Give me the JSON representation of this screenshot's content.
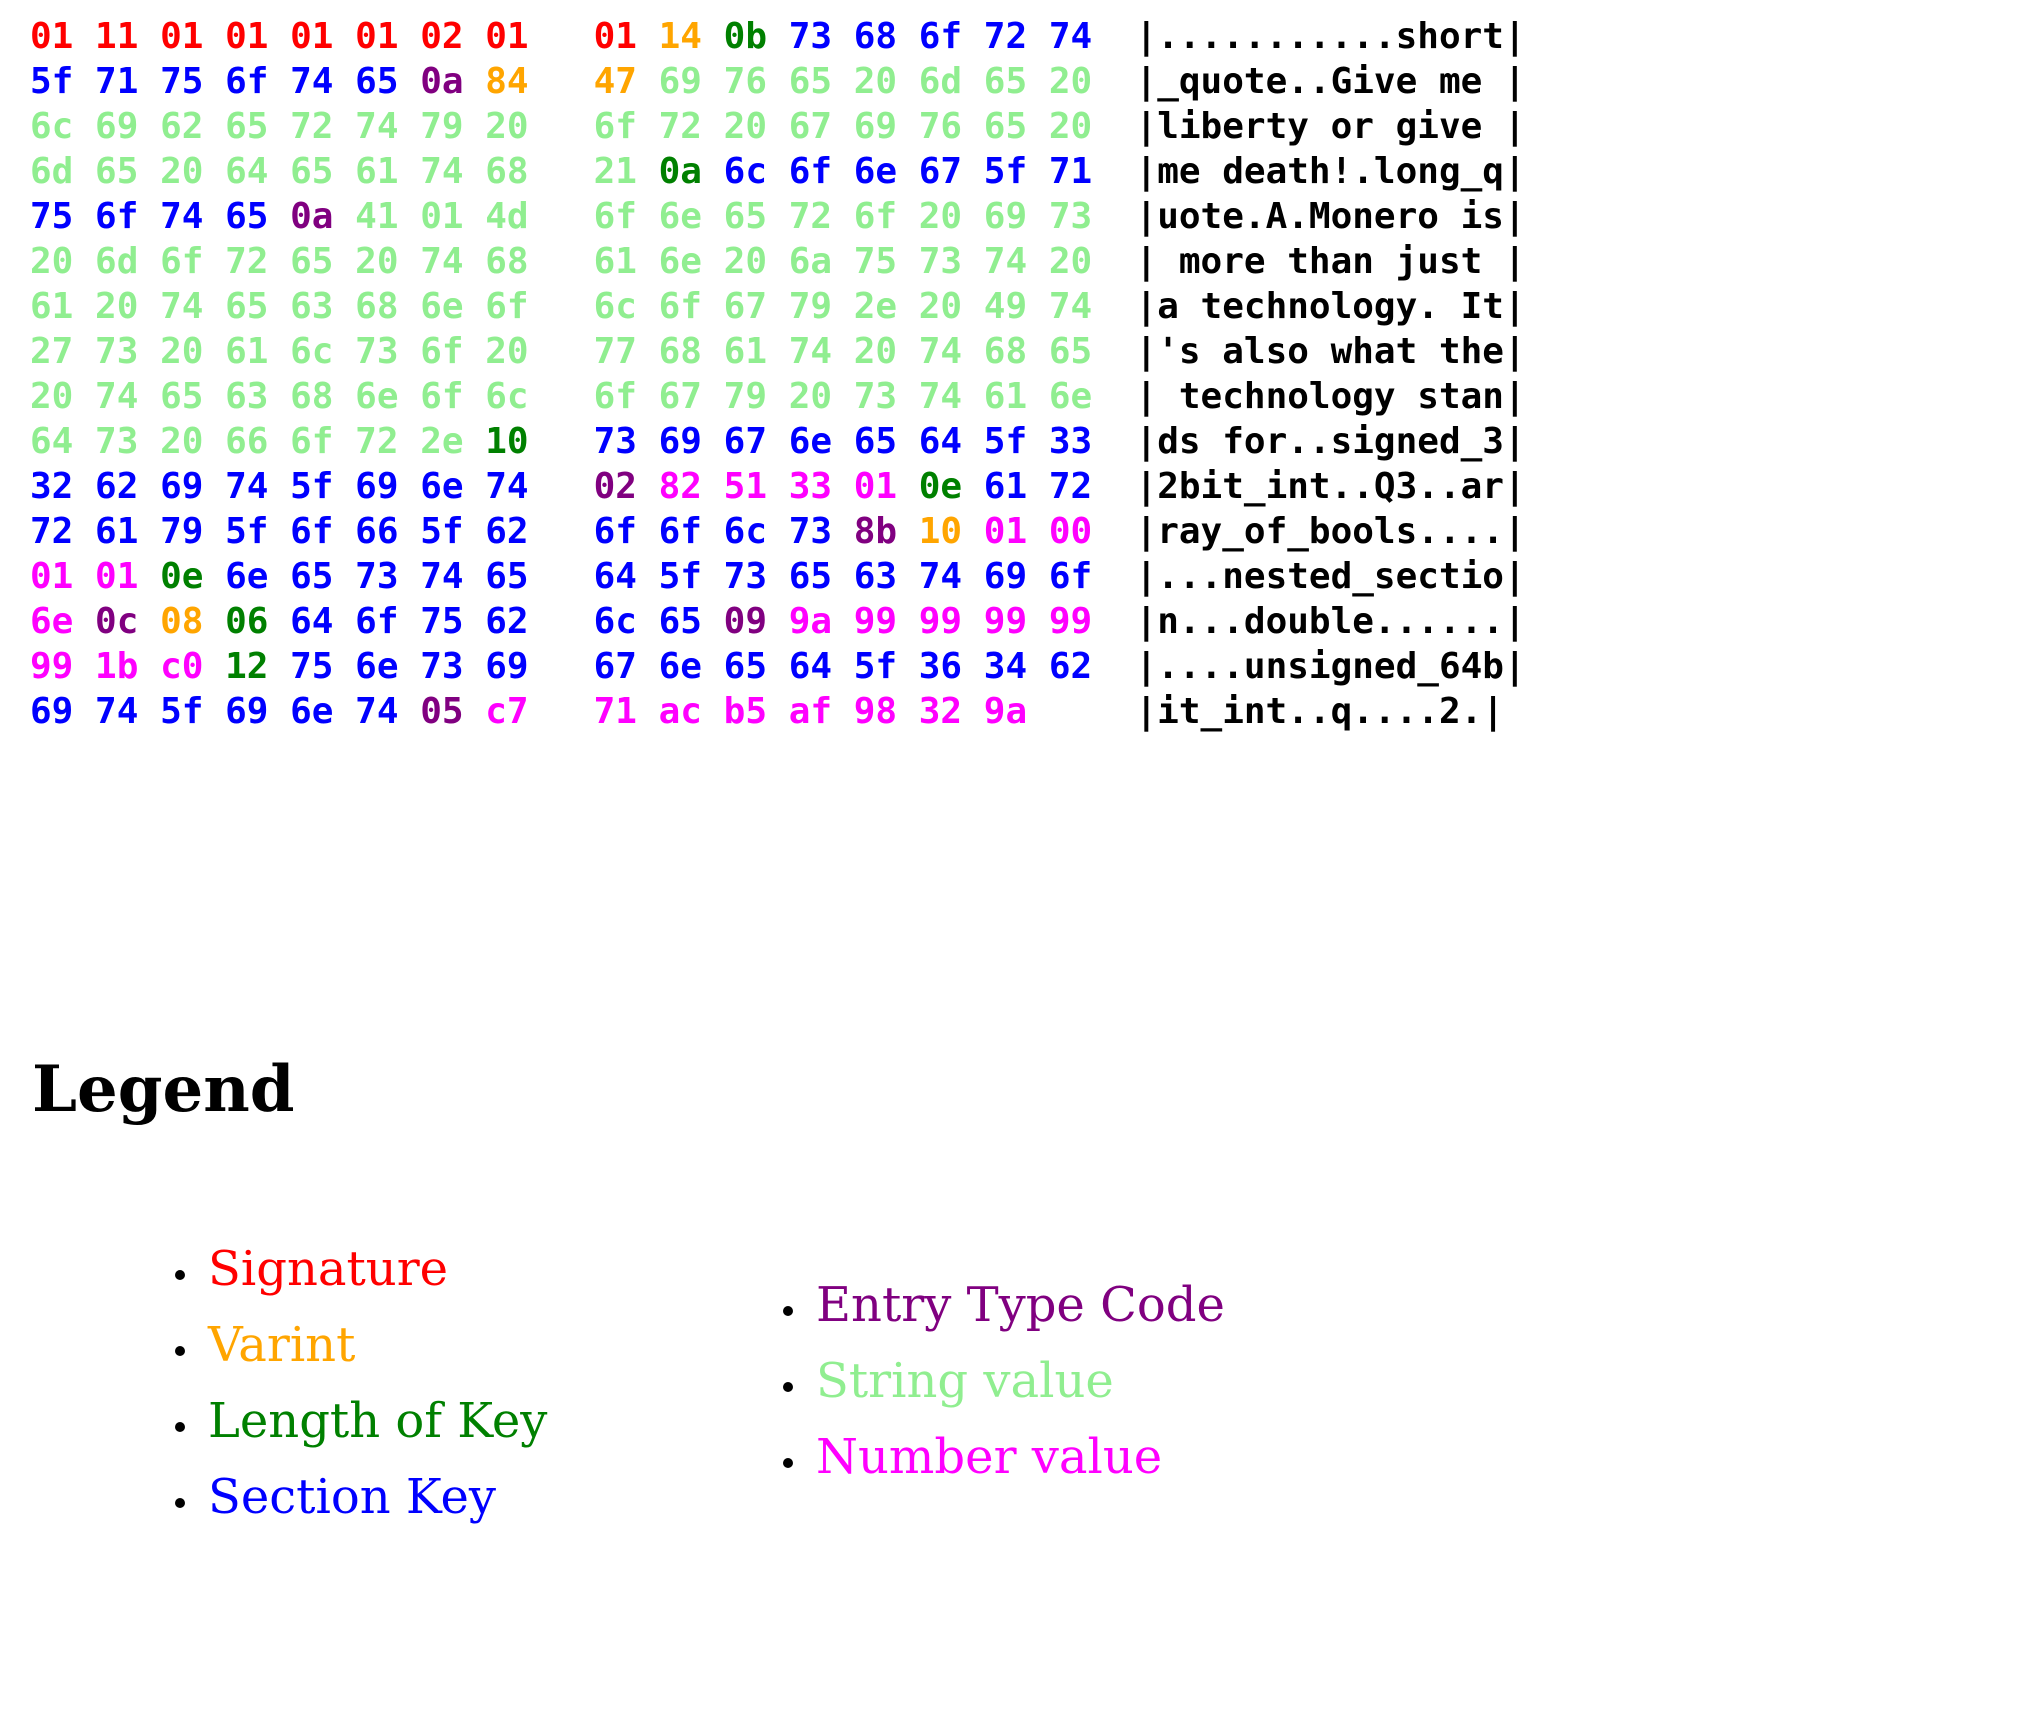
{
  "palette": {
    "r": "#ff0000",
    "o": "#ffa500",
    "g": "#008000",
    "b": "#0000ff",
    "p": "#800080",
    "s": "#90ee90",
    "m": "#ff00ff",
    "k": "#000000"
  },
  "hexdump": {
    "rows": [
      {
        "b": "01 11 01 01 01 01 02 01 01 14 0b 73 68 6f 72 74",
        "c": "rrrrrrrrrogbbbbb",
        "ascii": "|...........short|"
      },
      {
        "b": "5f 71 75 6f 74 65 0a 84 47 69 76 65 20 6d 65 20",
        "c": "bbbbbbpoosssssss",
        "ascii": "|_quote..Give me |"
      },
      {
        "b": "6c 69 62 65 72 74 79 20 6f 72 20 67 69 76 65 20",
        "c": "ssssssssssssssss",
        "ascii": "|liberty or give |"
      },
      {
        "b": "6d 65 20 64 65 61 74 68 21 0a 6c 6f 6e 67 5f 71",
        "c": "sssssssssgbbbbbb",
        "ascii": "|me death!.long_q|"
      },
      {
        "b": "75 6f 74 65 0a 41 01 4d 6f 6e 65 72 6f 20 69 73",
        "c": "bbbbpsssssssssss",
        "ascii": "|uote.A.Monero is|"
      },
      {
        "b": "20 6d 6f 72 65 20 74 68 61 6e 20 6a 75 73 74 20",
        "c": "ssssssssssssssss",
        "ascii": "| more than just |"
      },
      {
        "b": "61 20 74 65 63 68 6e 6f 6c 6f 67 79 2e 20 49 74",
        "c": "ssssssssssssssss",
        "ascii": "|a technology. It|"
      },
      {
        "b": "27 73 20 61 6c 73 6f 20 77 68 61 74 20 74 68 65",
        "c": "ssssssssssssssss",
        "ascii": "|'s also what the|"
      },
      {
        "b": "20 74 65 63 68 6e 6f 6c 6f 67 79 20 73 74 61 6e",
        "c": "ssssssssssssssss",
        "ascii": "| technology stan|"
      },
      {
        "b": "64 73 20 66 6f 72 2e 10 73 69 67 6e 65 64 5f 33",
        "c": "sssssssgbbbbbbbb",
        "ascii": "|ds for..signed_3|"
      },
      {
        "b": "32 62 69 74 5f 69 6e 74 02 82 51 33 01 0e 61 72",
        "c": "bbbbbbbbpmmmmgbb",
        "ascii": "|2bit_int..Q3..ar|"
      },
      {
        "b": "72 61 79 5f 6f 66 5f 62 6f 6f 6c 73 8b 10 01 00",
        "c": "bbbbbbbbbbbbpomm",
        "ascii": "|ray_of_bools....|"
      },
      {
        "b": "01 01 0e 6e 65 73 74 65 64 5f 73 65 63 74 69 6f",
        "c": "mmgbbbbbbbbbbbbb",
        "ascii": "|...nested_sectio|"
      },
      {
        "b": "6e 0c 08 06 64 6f 75 62 6c 65 09 9a 99 99 99 99",
        "c": "mpogbbbbbbpmmmmm",
        "ascii": "|n...double......|"
      },
      {
        "b": "99 1b c0 12 75 6e 73 69 67 6e 65 64 5f 36 34 62",
        "c": "mmmgbbbbbbbbbbbb",
        "ascii": "|....unsigned_64b|"
      },
      {
        "b": "69 74 5f 69 6e 74 05 c7 71 ac b5 af 98 32 9a",
        "c": "bbbbbbpmmmmmmmm",
        "ascii": "|it_int..q....2.|"
      }
    ]
  },
  "legend": {
    "title": "Legend",
    "columns": [
      [
        {
          "label": "Signature",
          "color": "r"
        },
        {
          "label": "Varint",
          "color": "o"
        },
        {
          "label": "Length of Key",
          "color": "g"
        },
        {
          "label": "Section Key",
          "color": "b"
        }
      ],
      [
        {
          "label": "Entry Type Code",
          "color": "p"
        },
        {
          "label": "String value",
          "color": "s"
        },
        {
          "label": "Number value",
          "color": "m"
        }
      ]
    ]
  }
}
